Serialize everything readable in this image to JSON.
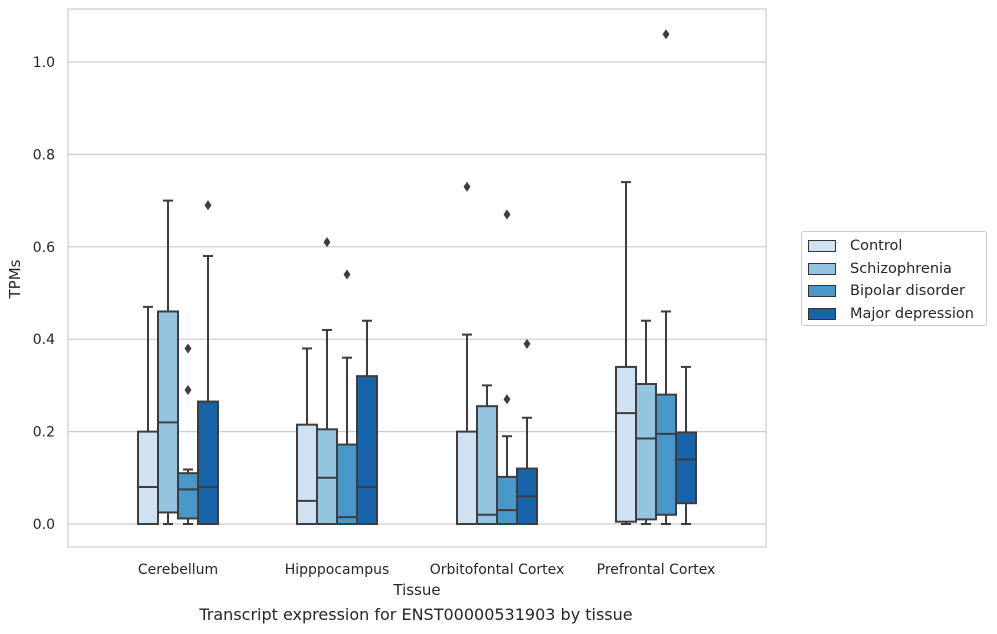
{
  "caption": "Transcript expression for ENST00000531903 by tissue",
  "chart_data": {
    "type": "box",
    "title": "",
    "xlabel": "Tissue",
    "ylabel": "TPMs",
    "ylim": [
      -0.05,
      1.115
    ],
    "yticks": [
      "0.0",
      "0.2",
      "0.4",
      "0.6",
      "0.8",
      "1.0"
    ],
    "grid": true,
    "legend_position": "right",
    "categories": [
      "Cerebellum",
      "Hipppocampus",
      "Orbitofontal Cortex",
      "Prefrontal Cortex"
    ],
    "series": [
      {
        "name": "Control",
        "color": "#d0e1f2",
        "boxes": [
          {
            "whisker_low": 0.0,
            "q1": 0.0,
            "median": 0.08,
            "q3": 0.2,
            "whisker_high": 0.47,
            "outliers": []
          },
          {
            "whisker_low": 0.0,
            "q1": 0.0,
            "median": 0.05,
            "q3": 0.215,
            "whisker_high": 0.38,
            "outliers": []
          },
          {
            "whisker_low": 0.0,
            "q1": 0.0,
            "median": 0.0,
            "q3": 0.2,
            "whisker_high": 0.41,
            "outliers": [
              0.73
            ]
          },
          {
            "whisker_low": 0.0,
            "q1": 0.005,
            "median": 0.24,
            "q3": 0.34,
            "whisker_high": 0.74,
            "outliers": []
          }
        ]
      },
      {
        "name": "Schizophrenia",
        "color": "#94c4df",
        "boxes": [
          {
            "whisker_low": 0.0,
            "q1": 0.025,
            "median": 0.22,
            "q3": 0.46,
            "whisker_high": 0.7,
            "outliers": []
          },
          {
            "whisker_low": 0.0,
            "q1": 0.0,
            "median": 0.1,
            "q3": 0.205,
            "whisker_high": 0.42,
            "outliers": [
              0.61
            ]
          },
          {
            "whisker_low": 0.0,
            "q1": 0.0,
            "median": 0.02,
            "q3": 0.255,
            "whisker_high": 0.3,
            "outliers": []
          },
          {
            "whisker_low": 0.0,
            "q1": 0.01,
            "median": 0.185,
            "q3": 0.303,
            "whisker_high": 0.44,
            "outliers": []
          }
        ]
      },
      {
        "name": "Bipolar disorder",
        "color": "#4a98c9",
        "boxes": [
          {
            "whisker_low": 0.0,
            "q1": 0.012,
            "median": 0.075,
            "q3": 0.11,
            "whisker_high": 0.118,
            "outliers": [
              0.29,
              0.38
            ]
          },
          {
            "whisker_low": 0.0,
            "q1": 0.0,
            "median": 0.015,
            "q3": 0.172,
            "whisker_high": 0.36,
            "outliers": [
              0.54
            ]
          },
          {
            "whisker_low": 0.0,
            "q1": 0.0,
            "median": 0.03,
            "q3": 0.102,
            "whisker_high": 0.19,
            "outliers": [
              0.27,
              0.67
            ]
          },
          {
            "whisker_low": 0.0,
            "q1": 0.02,
            "median": 0.195,
            "q3": 0.28,
            "whisker_high": 0.46,
            "outliers": [
              1.06
            ]
          }
        ]
      },
      {
        "name": "Major depression",
        "color": "#1764ab",
        "boxes": [
          {
            "whisker_low": 0.0,
            "q1": 0.0,
            "median": 0.08,
            "q3": 0.265,
            "whisker_high": 0.58,
            "outliers": [
              0.69
            ]
          },
          {
            "whisker_low": 0.0,
            "q1": 0.0,
            "median": 0.08,
            "q3": 0.32,
            "whisker_high": 0.44,
            "outliers": []
          },
          {
            "whisker_low": 0.0,
            "q1": 0.0,
            "median": 0.06,
            "q3": 0.12,
            "whisker_high": 0.23,
            "outliers": [
              0.39
            ]
          },
          {
            "whisker_low": 0.0,
            "q1": 0.045,
            "median": 0.14,
            "q3": 0.198,
            "whisker_high": 0.34,
            "outliers": []
          }
        ]
      }
    ]
  }
}
